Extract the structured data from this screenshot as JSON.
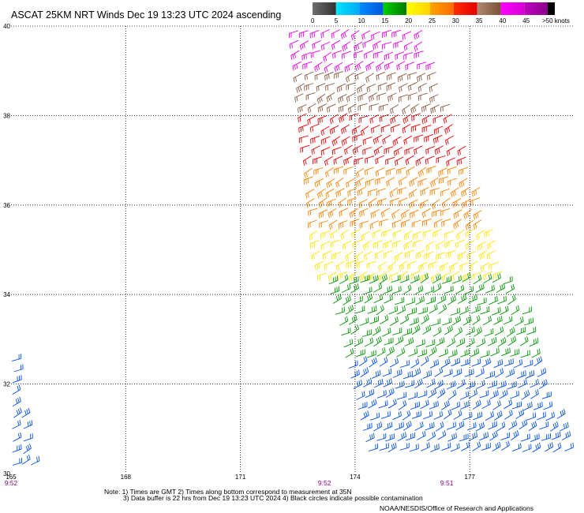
{
  "title": "ASCAT 25KM NRT Winds Dec 19 13:23 UTC 2024 ascending",
  "notes": {
    "line1": "Note: 1) Times are GMT 2) Times along bottom correspond to measurement at 35N",
    "line2": "3) Data buffer is 22 hrs from Dec 19 13:23 UTC 2024 4) Black circles indicate possible contamination",
    "credit": "NOAA/NESDIS/Office of Research and Applications"
  },
  "colorbar": {
    "labels": [
      "0",
      "5",
      "10",
      "15",
      "20",
      "25",
      "30",
      "35",
      "40",
      "45",
      ">50 knots"
    ],
    "segments": [
      {
        "range": "0-5",
        "from": "#6e6e6e",
        "to": "#303030"
      },
      {
        "range": "5-10",
        "from": "#00e5ff",
        "to": "#00aaf5"
      },
      {
        "range": "10-15",
        "from": "#008cff",
        "to": "#0055e0"
      },
      {
        "range": "15-20",
        "from": "#00d000",
        "to": "#007800"
      },
      {
        "range": "20-25",
        "from": "#ffff00",
        "to": "#ffd400"
      },
      {
        "range": "25-30",
        "from": "#ffa500",
        "to": "#ff6a00"
      },
      {
        "range": "30-35",
        "from": "#ff2a00",
        "to": "#e60000"
      },
      {
        "range": "35-40",
        "from": "#b08a72",
        "to": "#7a5038"
      },
      {
        "range": "40-45",
        "from": "#ff00ff",
        "to": "#d400d4"
      },
      {
        "range": "45-50",
        "from": "#c000c0",
        "to": "#8a008a"
      },
      {
        "range": ">50",
        "from": "#000000",
        "to": "#000000"
      }
    ]
  },
  "chart_data": {
    "type": "scatter",
    "subtype": "wind-barb map",
    "xlabel": "",
    "ylabel": "",
    "xlim": [
      165,
      179.7
    ],
    "ylim": [
      30,
      40
    ],
    "x_ticks": [
      "165",
      "168",
      "171",
      "174",
      "177"
    ],
    "x_tick_values": [
      165,
      168,
      171,
      174,
      177
    ],
    "y_ticks": [
      "30",
      "32",
      "34",
      "36",
      "38",
      "40"
    ],
    "y_tick_values": [
      30,
      32,
      34,
      36,
      38,
      40
    ],
    "grid": true,
    "time_labels": [
      {
        "lon": 165.0,
        "text": "9:52"
      },
      {
        "lon": 173.2,
        "text": "9:52"
      },
      {
        "lon": 176.4,
        "text": "9:51"
      }
    ],
    "swaths": [
      {
        "name": "main swath",
        "corners_lonlat": [
          [
            172.4,
            40.0
          ],
          [
            175.9,
            40.0
          ],
          [
            179.7,
            30.2
          ],
          [
            174.3,
            30.3
          ],
          [
            173.0,
            35.0
          ]
        ],
        "color_bands_by_lat": [
          {
            "lat": [
              39.0,
              40.0
            ],
            "speed_knots": "40-45"
          },
          {
            "lat": [
              38.2,
              39.0
            ],
            "speed_knots": "35-40"
          },
          {
            "lat": [
              36.9,
              38.2
            ],
            "speed_knots": "30-35"
          },
          {
            "lat": [
              35.6,
              36.9
            ],
            "speed_knots": "25-30"
          },
          {
            "lat": [
              34.4,
              35.6
            ],
            "speed_knots": "20-25"
          },
          {
            "lat": [
              32.4,
              34.4
            ],
            "speed_knots": "15-20"
          },
          {
            "lat": [
              30.2,
              32.4
            ],
            "speed_knots": "10-15"
          }
        ]
      },
      {
        "name": "west edge swath",
        "corners_lonlat": [
          [
            165.0,
            32.9
          ],
          [
            165.6,
            30.0
          ],
          [
            165.0,
            30.0
          ]
        ],
        "color_bands_by_lat": [
          {
            "lat": [
              30.0,
              32.9
            ],
            "speed_knots": "10-15"
          }
        ]
      }
    ]
  }
}
